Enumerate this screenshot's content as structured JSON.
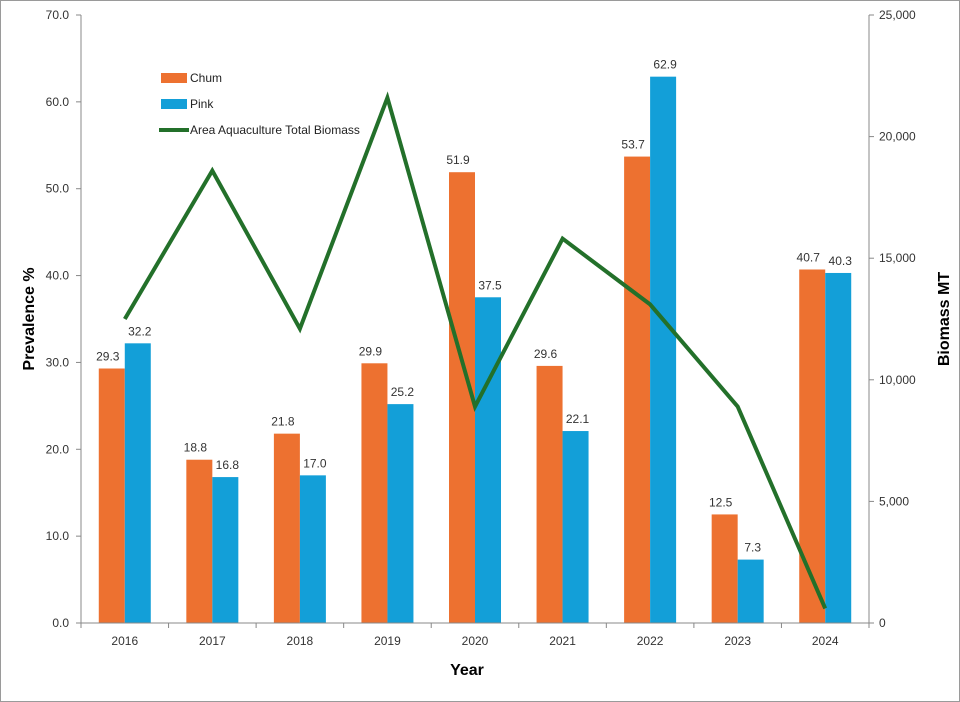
{
  "chart_data": {
    "type": "bar",
    "categories": [
      "2016",
      "2017",
      "2018",
      "2019",
      "2020",
      "2021",
      "2022",
      "2023",
      "2024"
    ],
    "series": [
      {
        "name": "Chum",
        "type": "bar",
        "axis": "left",
        "color": "#ED7130",
        "values": [
          29.3,
          18.8,
          21.8,
          29.9,
          51.9,
          29.6,
          53.7,
          12.5,
          40.7
        ],
        "labels": [
          "29.3",
          "18.8",
          "21.8",
          "29.9",
          "51.9",
          "29.6",
          "53.7",
          "12.5",
          "40.7"
        ]
      },
      {
        "name": "Pink",
        "type": "bar",
        "axis": "right-bar",
        "color": "#139FD8",
        "values": [
          32.2,
          16.8,
          17.0,
          25.2,
          37.5,
          22.1,
          62.9,
          7.3,
          40.3
        ],
        "labels": [
          "32.2",
          "16.8",
          "17.0",
          "25.2",
          "37.5",
          "22.1",
          "62.9",
          "7.3",
          "40.3"
        ]
      },
      {
        "name": "Area Aquaculture Total Biomass",
        "type": "line",
        "axis": "right",
        "color": "#23702A",
        "values": [
          12500,
          18600,
          12100,
          21600,
          8900,
          15800,
          13100,
          8900,
          600
        ]
      }
    ],
    "xlabel": "Year",
    "ylabel": "Prevalence %",
    "y2label": "Biomass MT",
    "ylim": [
      0,
      70
    ],
    "y2lim": [
      0,
      25000
    ],
    "yticks": [
      "0.0",
      "10.0",
      "20.0",
      "30.0",
      "40.0",
      "50.0",
      "60.0",
      "70.0"
    ],
    "y2ticks": [
      "0",
      "5,000",
      "10,000",
      "15,000",
      "20,000",
      "25,000"
    ],
    "grid": false,
    "legend_position": "top-left"
  }
}
